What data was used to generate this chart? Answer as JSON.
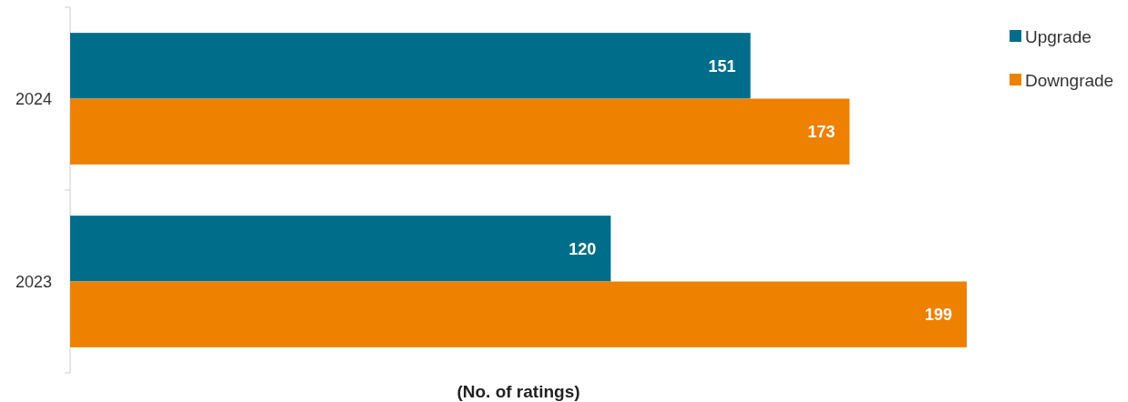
{
  "chart_data": {
    "type": "bar",
    "orientation": "horizontal",
    "xlabel": "(No. of ratings)",
    "categories": [
      "2024",
      "2023"
    ],
    "series": [
      {
        "name": "Upgrade",
        "color": "#006e8a",
        "values": [
          151,
          120
        ]
      },
      {
        "name": "Downgrade",
        "color": "#ee8100",
        "values": [
          173,
          199
        ]
      }
    ],
    "data_labels": true,
    "legend": "top right",
    "tick_labels": "y"
  }
}
